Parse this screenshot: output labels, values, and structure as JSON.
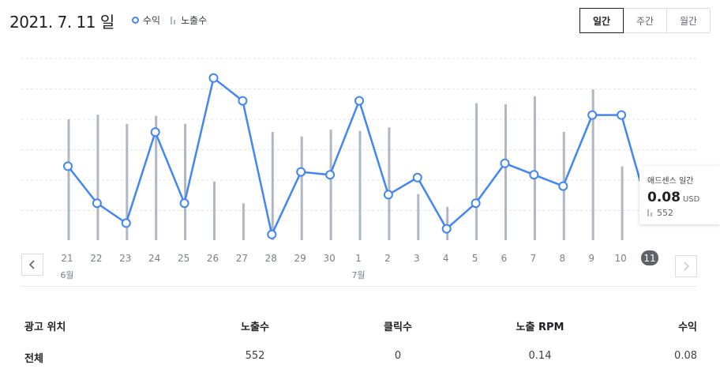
{
  "header": {
    "date_title": "2021. 7. 11 일",
    "legend": {
      "revenue_label": "수익",
      "impressions_label": "노출수"
    },
    "periods": [
      {
        "label": "일간",
        "active": true
      },
      {
        "label": "주간",
        "active": false
      },
      {
        "label": "월간",
        "active": false
      }
    ]
  },
  "colors": {
    "line": "#4285f4",
    "bar": "#b0b7c3",
    "selected_badge": "#5f6368"
  },
  "chart_data": {
    "type": "line",
    "x": [
      "21",
      "22",
      "23",
      "24",
      "25",
      "26",
      "27",
      "28",
      "29",
      "30",
      "1",
      "2",
      "3",
      "4",
      "5",
      "6",
      "7",
      "8",
      "9",
      "10",
      "11"
    ],
    "month_labels": [
      {
        "index": 0,
        "label": "6월"
      },
      {
        "index": 10,
        "label": "7월"
      }
    ],
    "selected_index": 20,
    "series": [
      {
        "name": "수익",
        "kind": "line",
        "values": [
          0.26,
          0.13,
          0.06,
          0.38,
          0.13,
          0.57,
          0.49,
          0.02,
          0.24,
          0.23,
          0.49,
          0.16,
          0.22,
          0.04,
          0.13,
          0.27,
          0.23,
          0.19,
          0.44,
          0.44,
          0.08
        ]
      },
      {
        "name": "노출수",
        "kind": "bar",
        "values": [
          1050,
          1090,
          1010,
          1080,
          1010,
          510,
          320,
          940,
          900,
          960,
          950,
          980,
          400,
          290,
          1190,
          1180,
          1250,
          940,
          1310,
          640,
          552
        ]
      }
    ],
    "y_revenue_range": [
      0,
      0.6
    ],
    "y_impressions_range": [
      0,
      1400
    ],
    "grid": true
  },
  "tooltip": {
    "title": "애드센스 일간",
    "value": "0.08",
    "unit": "USD",
    "impressions": "552"
  },
  "nav": {
    "prev_icon": "chevron-left-icon",
    "next_icon": "chevron-right-icon"
  },
  "table": {
    "headers": [
      "광고 위치",
      "노출수",
      "클릭수",
      "노출 RPM",
      "수익"
    ],
    "rows": [
      [
        "전체",
        "552",
        "0",
        "0.14",
        "0.08"
      ]
    ]
  }
}
